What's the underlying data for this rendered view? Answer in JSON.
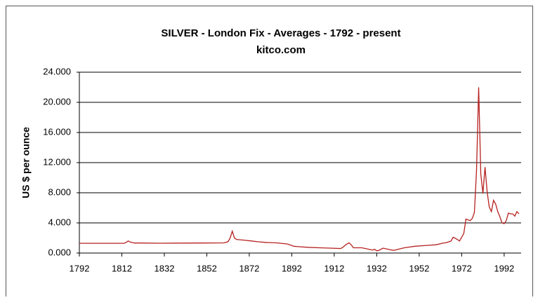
{
  "chart_data": {
    "type": "line",
    "title": "SILVER  -  London  Fix - Averages  -  1792 - present",
    "subtitle": "kitco.com",
    "y_label": "US $ per ounce",
    "x": [
      1792,
      1800,
      1810,
      1813,
      1814,
      1815,
      1816,
      1818,
      1820,
      1830,
      1840,
      1850,
      1860,
      1862,
      1863,
      1864,
      1865,
      1866,
      1870,
      1873,
      1876,
      1880,
      1885,
      1890,
      1893,
      1895,
      1900,
      1905,
      1910,
      1915,
      1916,
      1917,
      1918,
      1919,
      1920,
      1921,
      1925,
      1930,
      1931,
      1932,
      1933,
      1935,
      1939,
      1940,
      1945,
      1950,
      1955,
      1960,
      1963,
      1965,
      1967,
      1968,
      1970,
      1971,
      1973,
      1974,
      1976,
      1977,
      1978,
      1979,
      1980,
      1981,
      1982,
      1983,
      1984,
      1985,
      1986,
      1987,
      1988,
      1989,
      1990,
      1991,
      1992,
      1993,
      1994,
      1995,
      1996,
      1997,
      1998,
      1999
    ],
    "series": [
      {
        "name": "Silver",
        "color": "#b5211f",
        "values": [
          1.29,
          1.29,
          1.29,
          1.29,
          1.4,
          1.6,
          1.45,
          1.33,
          1.33,
          1.3,
          1.32,
          1.33,
          1.35,
          1.5,
          2.0,
          2.9,
          2.0,
          1.8,
          1.7,
          1.6,
          1.5,
          1.4,
          1.35,
          1.2,
          0.9,
          0.85,
          0.75,
          0.7,
          0.65,
          0.6,
          0.75,
          1.0,
          1.2,
          1.35,
          1.1,
          0.7,
          0.7,
          0.4,
          0.5,
          0.3,
          0.35,
          0.65,
          0.4,
          0.35,
          0.7,
          0.9,
          1.0,
          1.1,
          1.3,
          1.4,
          1.6,
          2.1,
          1.8,
          1.6,
          2.6,
          4.5,
          4.3,
          4.6,
          5.4,
          11.0,
          22.0,
          10.5,
          7.9,
          11.4,
          8.1,
          6.1,
          5.5,
          7.0,
          6.5,
          5.5,
          4.8,
          4.0,
          3.9,
          4.3,
          5.3,
          5.2,
          5.2,
          4.9,
          5.5,
          5.2
        ]
      }
    ],
    "xlim": [
      1792,
      2000
    ],
    "xticks": [
      1792,
      1812,
      1832,
      1852,
      1872,
      1892,
      1912,
      1932,
      1952,
      1972,
      1992
    ],
    "ylim": [
      0,
      24
    ],
    "yticks": [
      {
        "value": 0,
        "label": "0.000"
      },
      {
        "value": 4,
        "label": "4.000"
      },
      {
        "value": 8,
        "label": "8.000"
      },
      {
        "value": 12,
        "label": "12.000"
      },
      {
        "value": 16,
        "label": "16.000"
      },
      {
        "value": 20,
        "label": "20.000"
      },
      {
        "value": 24,
        "label": "24.000"
      }
    ],
    "grid": true
  }
}
